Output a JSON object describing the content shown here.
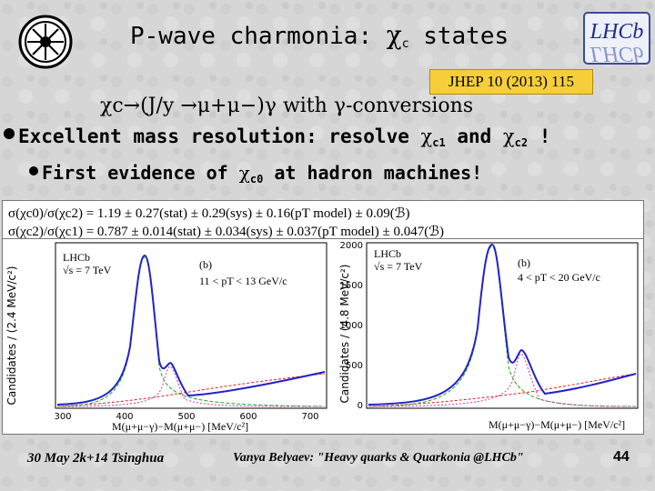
{
  "header": {
    "title_pre": "P-wave charmonia: ",
    "title_chi": "χ",
    "title_sub": "c",
    "title_post": " states",
    "reference": "JHEP 10 (2013) 115",
    "lhcb_logo_text": "LHCb"
  },
  "bullets": {
    "line1": "χc→(J/y →μ+μ−)γ  with  γ-conversions",
    "line2_pre": "Excellent mass resolution: resolve ",
    "line2_chi1": "χ",
    "line2_sub1": "c1",
    "line2_mid": " and ",
    "line2_chi2": "χ",
    "line2_sub2": "c2",
    "line2_post": " !",
    "line3_pre": "First evidence of ",
    "line3_chi": "χ",
    "line3_sub": "c0",
    "line3_post": " at hadron machines!"
  },
  "formulas": [
    "σ(χc0)/σ(χc2) = 1.19 ± 0.27(stat) ± 0.29(sys) ± 0.16(pT model) ± 0.09(ℬ)",
    "σ(χc2)/σ(χc1) = 0.787 ± 0.014(stat) ± 0.034(sys) ± 0.037(pT model) ± 0.047(ℬ)"
  ],
  "plots": [
    {
      "experiment": "LHCb",
      "energy": "√s = 7 TeV",
      "panel": "(b)",
      "cut": "11 < pT < 13 GeV/c",
      "ylabel": "Candidates / (2.4 MeV/c²)",
      "xlabel": "M(μ+μ−γ)−M(μ+μ−) [MeV/c²]",
      "xticks": [
        "300",
        "400",
        "500",
        "600",
        "700"
      ]
    },
    {
      "experiment": "LHCb",
      "energy": "√s = 7 TeV",
      "panel": "(b)",
      "cut": "4 < pT < 20 GeV/c",
      "ylabel": "Candidates / (4.8 MeV/c²)",
      "xlabel": "M(μ+μ−γ)−M(μ+μ−) [MeV/c²]",
      "yticks": [
        "0",
        "500",
        "1000",
        "1500",
        "2000"
      ]
    }
  ],
  "footer": {
    "date": "30 May 2k+14 Tsinghua",
    "author": "Vanya Belyaev: \"Heavy quarks & Quarkonia @LHCb\"",
    "page": "44"
  }
}
